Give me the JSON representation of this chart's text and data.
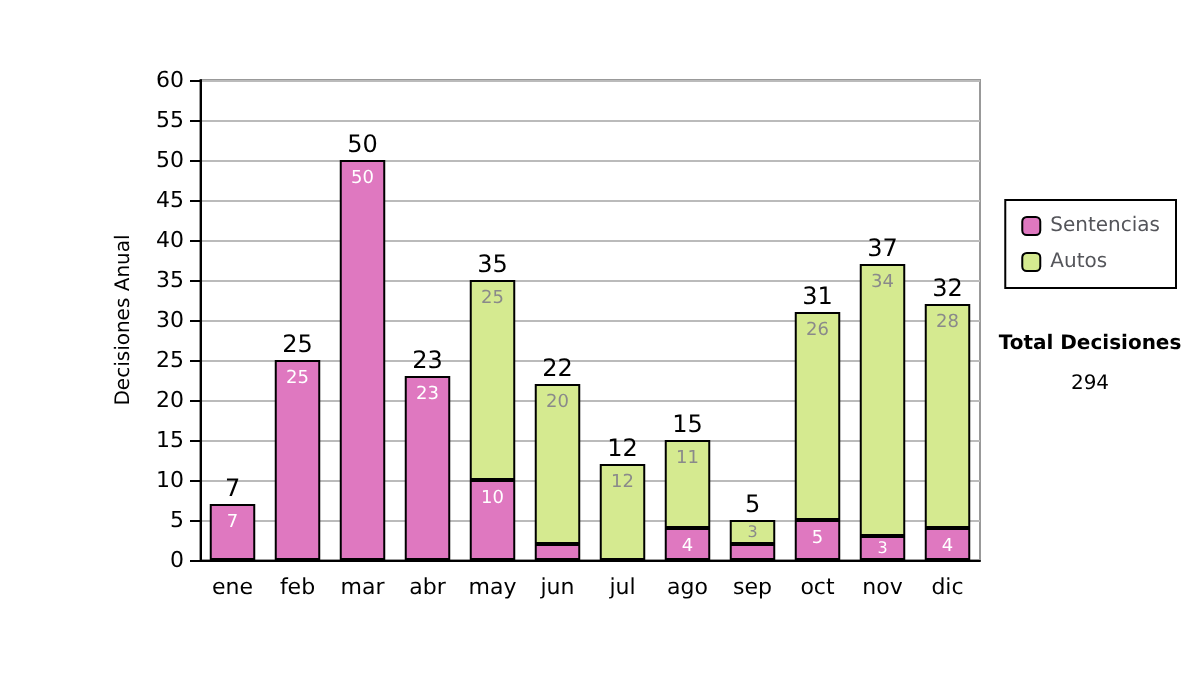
{
  "chart_data": {
    "type": "bar",
    "ylabel": "Decisiones Anual",
    "categories": [
      "ene",
      "feb",
      "mar",
      "abr",
      "may",
      "jun",
      "jul",
      "ago",
      "sep",
      "oct",
      "nov",
      "dic"
    ],
    "stacked": true,
    "series": [
      {
        "name": "Sentencias",
        "color": "#df78c0",
        "values": [
          7,
          25,
          50,
          23,
          10,
          2,
          0,
          4,
          2,
          5,
          3,
          4
        ],
        "value_labels": [
          "7",
          "25",
          "50",
          "23",
          "10",
          null,
          null,
          "4",
          null,
          "5",
          "3",
          "4"
        ]
      },
      {
        "name": "Autos",
        "color": "#d5ea90",
        "values": [
          0,
          0,
          0,
          0,
          25,
          20,
          12,
          11,
          3,
          26,
          34,
          28
        ],
        "value_labels": [
          null,
          null,
          null,
          null,
          "25",
          "20",
          "12",
          "11",
          "3",
          "26",
          "34",
          "28"
        ]
      }
    ],
    "totals": [
      "7",
      "25",
      "50",
      "23",
      "35",
      "22",
      "12",
      "15",
      "5",
      "31",
      "37",
      "32"
    ],
    "ylim": [
      0,
      60
    ],
    "yticks": [
      0,
      5,
      10,
      15,
      20,
      25,
      30,
      35,
      40,
      45,
      50,
      55,
      60
    ],
    "grid": "y",
    "legend": "right",
    "annotations": [
      "Total Decisiones",
      "294"
    ]
  }
}
